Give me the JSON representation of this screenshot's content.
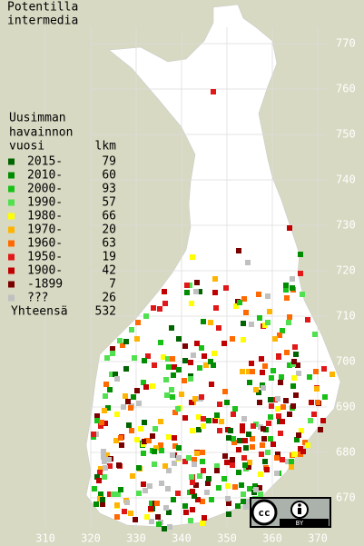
{
  "title_lines": [
    "Potentilla",
    "intermedia"
  ],
  "legend": {
    "header_lines": [
      "Uusimman",
      "havainnon",
      "vuosi"
    ],
    "count_header": "lkm",
    "rows": [
      {
        "label": "2015-",
        "count": 79,
        "color": "#006400"
      },
      {
        "label": "2010-",
        "count": 60,
        "color": "#008c00"
      },
      {
        "label": "2000-",
        "count": 93,
        "color": "#18c018"
      },
      {
        "label": "1990-",
        "count": 57,
        "color": "#50e050"
      },
      {
        "label": "1980-",
        "count": 66,
        "color": "#ffff00"
      },
      {
        "label": "1970-",
        "count": 20,
        "color": "#ffb400"
      },
      {
        "label": "1960-",
        "count": 63,
        "color": "#ff6a00"
      },
      {
        "label": "1950-",
        "count": 19,
        "color": "#e01818"
      },
      {
        "label": "1900-",
        "count": 42,
        "color": "#c00000"
      },
      {
        "label": "-1899",
        "count": 7,
        "color": "#7a0000"
      },
      {
        "label": "???",
        "count": 26,
        "color": "#c0c0c0"
      }
    ],
    "total_label": "Yhteensä",
    "total": 532
  },
  "y_labels": [
    770,
    760,
    750,
    740,
    730,
    720,
    710,
    700,
    690,
    680,
    670
  ],
  "x_labels": [
    310,
    320,
    330,
    340,
    350,
    360,
    370
  ],
  "license": {
    "icon": "cc",
    "text": "BY"
  }
}
